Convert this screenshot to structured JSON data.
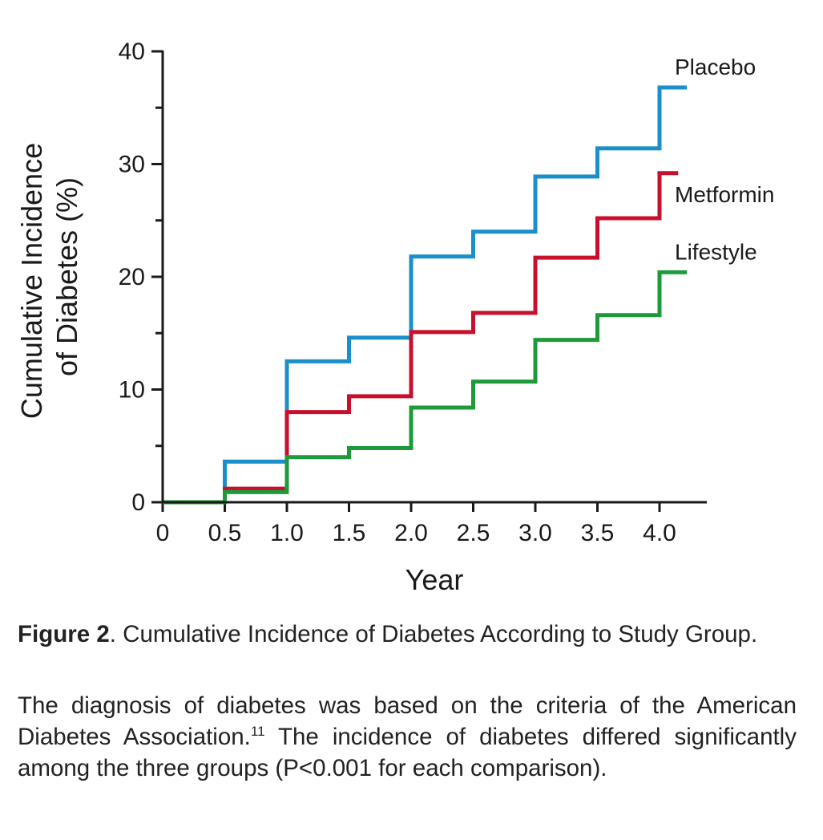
{
  "chart_data": {
    "type": "line",
    "step": true,
    "xlabel": "Year",
    "ylabel_lines": [
      "Cumulative Incidence",
      "of Diabetes (%)"
    ],
    "xlim": [
      0,
      4.2
    ],
    "ylim": [
      0,
      40
    ],
    "x_ticks": [
      0,
      0.5,
      1.0,
      1.5,
      2.0,
      2.5,
      3.0,
      3.5,
      4.0
    ],
    "x_tick_labels": [
      "0",
      "0.5",
      "1.0",
      "1.5",
      "2.0",
      "2.5",
      "3.0",
      "3.5",
      "4.0"
    ],
    "y_ticks": [
      0,
      10,
      20,
      30,
      40
    ],
    "y_tick_labels": [
      "0",
      "10",
      "20",
      "30",
      "40"
    ],
    "y_minor_step": 5,
    "grid": false,
    "legend": "inline labels at line ends",
    "series": [
      {
        "name": "Placebo",
        "color": "#1b8fc9",
        "x": [
          0,
          0.5,
          1.0,
          1.5,
          2.0,
          2.5,
          3.0,
          3.5,
          4.0,
          4.22
        ],
        "y": [
          0,
          3.6,
          12.5,
          14.6,
          21.8,
          24.0,
          28.9,
          31.4,
          36.8,
          36.8
        ]
      },
      {
        "name": "Metformin",
        "color": "#c8102e",
        "x": [
          0,
          0.5,
          1.0,
          1.5,
          2.0,
          2.5,
          3.0,
          3.5,
          4.0,
          4.15
        ],
        "y": [
          0,
          1.2,
          8.0,
          9.4,
          15.1,
          16.8,
          21.7,
          25.2,
          29.2,
          29.2
        ]
      },
      {
        "name": "Lifestyle",
        "color": "#1f9a3a",
        "x": [
          0,
          0.5,
          1.0,
          1.5,
          2.0,
          2.5,
          3.0,
          3.5,
          4.0,
          4.22
        ],
        "y": [
          0,
          0.9,
          4.0,
          4.8,
          8.4,
          10.7,
          14.4,
          16.6,
          20.4,
          20.4
        ]
      }
    ]
  },
  "caption": {
    "figure_label": "Figure 2",
    "title": ". Cumulative Incidence of Diabetes According to Study Group.",
    "body_before_ref": "The diagnosis of diabetes was based on the criteria of the American Diabetes Association.",
    "reference": "11",
    "body_after_ref": " The incidence of diabetes dif­fered significantly among the three groups (P<0.001 for each comparison)."
  }
}
